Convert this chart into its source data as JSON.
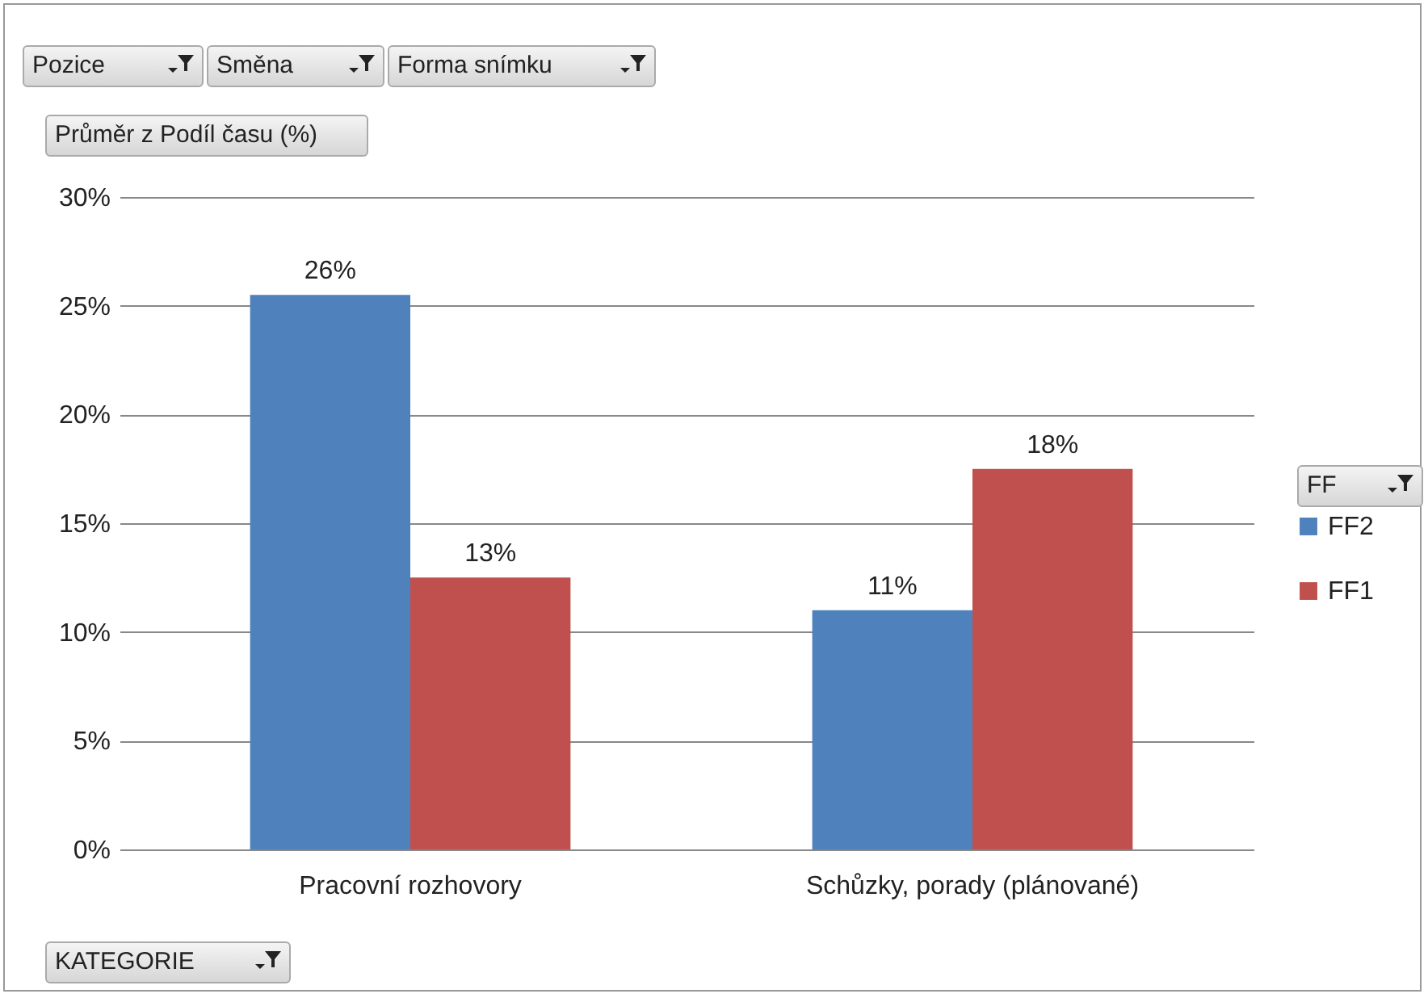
{
  "chart_data": {
    "type": "bar",
    "categories": [
      "Pracovní rozhovory",
      "Schůzky, porady (plánované)"
    ],
    "series": [
      {
        "name": "FF2",
        "color": "#4f81bd",
        "values": [
          25.5,
          11
        ],
        "value_labels": [
          "26%",
          "11%"
        ]
      },
      {
        "name": "FF1",
        "color": "#c0504d",
        "values": [
          12.5,
          17.5
        ],
        "value_labels": [
          "13%",
          "18%"
        ]
      }
    ],
    "ylim": [
      0,
      30
    ],
    "yticks": [
      {
        "value": 0,
        "label": "0%"
      },
      {
        "value": 5,
        "label": "5%"
      },
      {
        "value": 10,
        "label": "10%"
      },
      {
        "value": 15,
        "label": "15%"
      },
      {
        "value": 20,
        "label": "20%"
      },
      {
        "value": 25,
        "label": "25%"
      },
      {
        "value": 30,
        "label": "30%"
      }
    ],
    "grid": "y",
    "legend": "right",
    "legend_title": "FF",
    "ylabel": "Průměr z Podíl času (%)",
    "xlabel": "KATEGORIE",
    "annotations": [
      "Pozice",
      "Směna",
      "Forma snímku"
    ]
  }
}
